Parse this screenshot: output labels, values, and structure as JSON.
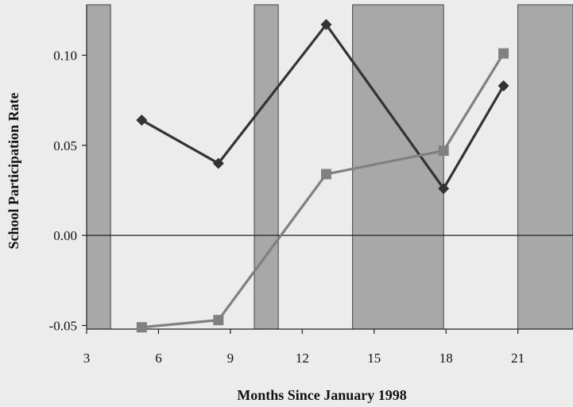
{
  "chart_data": {
    "type": "line",
    "title": "",
    "xlabel": "Months Since January 1998",
    "ylabel": "School Participation Rate",
    "xlim": [
      3,
      23.3
    ],
    "ylim": [
      -0.052,
      0.128
    ],
    "x_ticks": [
      3,
      6,
      9,
      12,
      15,
      18,
      21
    ],
    "y_ticks": [
      -0.05,
      0.0,
      0.05,
      0.1
    ],
    "y_tick_labels": [
      "-0.05",
      "0.00",
      "0.05",
      "0.10"
    ],
    "zero_line": true,
    "legend": "none",
    "shaded_periods": [
      {
        "start": 3.0,
        "end": 4.0
      },
      {
        "start": 10.0,
        "end": 11.0
      },
      {
        "start": 14.1,
        "end": 17.9
      },
      {
        "start": 21.0,
        "end": 23.3
      }
    ],
    "series": [
      {
        "marker": "diamond",
        "color": "#333333",
        "x": [
          5.3,
          8.5,
          13.0,
          17.9,
          20.4
        ],
        "y": [
          0.064,
          0.04,
          0.117,
          0.026,
          0.083
        ]
      },
      {
        "marker": "square",
        "color": "#808080",
        "x": [
          5.3,
          8.5,
          13.0,
          17.9,
          20.4
        ],
        "y": [
          -0.051,
          -0.047,
          0.034,
          0.047,
          0.101
        ]
      }
    ],
    "colors": {
      "background": "#ececec",
      "shade": "#a8a8a8",
      "axis": "#222222"
    }
  }
}
